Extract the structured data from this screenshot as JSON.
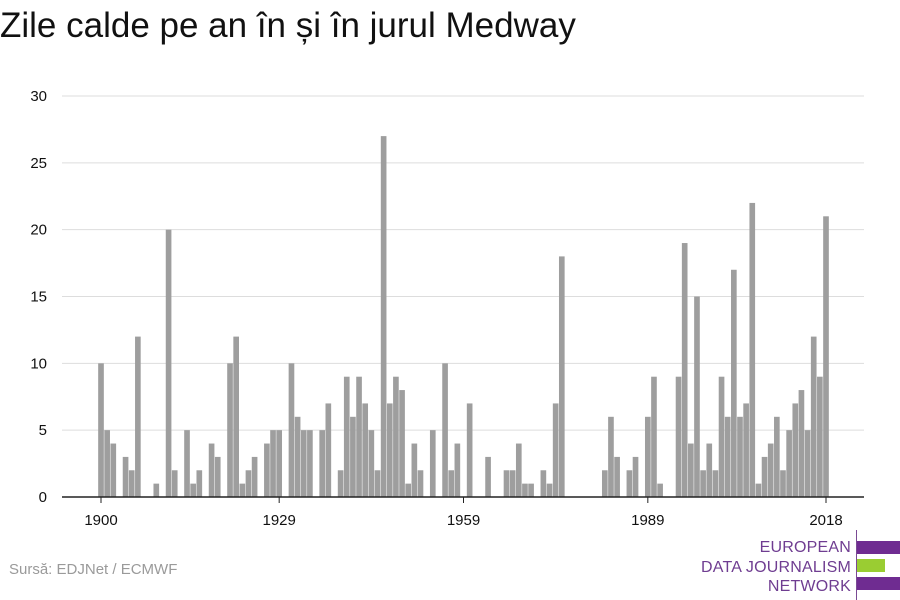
{
  "title": "Zile calde pe an în și în jurul Medway",
  "source": "Sursă: EDJNet / ECMWF",
  "logo": {
    "lines": [
      "EUROPEAN",
      "DATA JOURNALISM",
      "NETWORK"
    ],
    "colors": {
      "purple": "#6f2c91",
      "green": "#9acd32"
    }
  },
  "colors": {
    "bar": "#9e9e9e",
    "grid": "#dddddd",
    "axis": "#222222",
    "text": "#111111"
  },
  "chart_data": {
    "type": "bar",
    "title": "Zile calde pe an în și în jurul Medway",
    "xlabel": "",
    "ylabel": "",
    "ylim": [
      0,
      30
    ],
    "yticks": [
      0,
      5,
      10,
      15,
      20,
      25,
      30
    ],
    "xticks": [
      1900,
      1929,
      1959,
      1989,
      2018
    ],
    "grid": true,
    "x": [
      1900,
      1901,
      1902,
      1903,
      1904,
      1905,
      1906,
      1907,
      1908,
      1909,
      1910,
      1911,
      1912,
      1913,
      1914,
      1915,
      1916,
      1917,
      1918,
      1919,
      1920,
      1921,
      1922,
      1923,
      1924,
      1925,
      1926,
      1927,
      1928,
      1929,
      1930,
      1931,
      1932,
      1933,
      1934,
      1935,
      1936,
      1937,
      1938,
      1939,
      1940,
      1941,
      1942,
      1943,
      1944,
      1945,
      1946,
      1947,
      1948,
      1949,
      1950,
      1951,
      1952,
      1953,
      1954,
      1955,
      1956,
      1957,
      1958,
      1959,
      1960,
      1961,
      1962,
      1963,
      1964,
      1965,
      1966,
      1967,
      1968,
      1969,
      1970,
      1971,
      1972,
      1973,
      1974,
      1975,
      1976,
      1977,
      1978,
      1979,
      1980,
      1981,
      1982,
      1983,
      1984,
      1985,
      1986,
      1987,
      1988,
      1989,
      1990,
      1991,
      1992,
      1993,
      1994,
      1995,
      1996,
      1997,
      1998,
      1999,
      2000,
      2001,
      2002,
      2003,
      2004,
      2005,
      2006,
      2007,
      2008,
      2009,
      2010,
      2011,
      2012,
      2013,
      2014,
      2015,
      2016,
      2017,
      2018
    ],
    "values": [
      10,
      5,
      4,
      0,
      3,
      2,
      12,
      0,
      0,
      1,
      0,
      20,
      2,
      0,
      5,
      1,
      2,
      0,
      4,
      3,
      0,
      10,
      12,
      1,
      2,
      3,
      0,
      4,
      5,
      5,
      0,
      10,
      6,
      5,
      5,
      0,
      5,
      7,
      0,
      2,
      9,
      6,
      9,
      7,
      5,
      2,
      27,
      7,
      9,
      8,
      1,
      4,
      2,
      0,
      5,
      0,
      10,
      2,
      4,
      0,
      7,
      0,
      0,
      3,
      0,
      0,
      2,
      2,
      4,
      1,
      1,
      0,
      2,
      1,
      7,
      18,
      0,
      0,
      0,
      0,
      0,
      0,
      2,
      6,
      3,
      0,
      2,
      3,
      0,
      6,
      9,
      1,
      0,
      0,
      9,
      19,
      4,
      15,
      2,
      4,
      2,
      9,
      6,
      17,
      6,
      7,
      22,
      1,
      3,
      4,
      6,
      2,
      5,
      7,
      8,
      5,
      12,
      9,
      21
    ]
  }
}
